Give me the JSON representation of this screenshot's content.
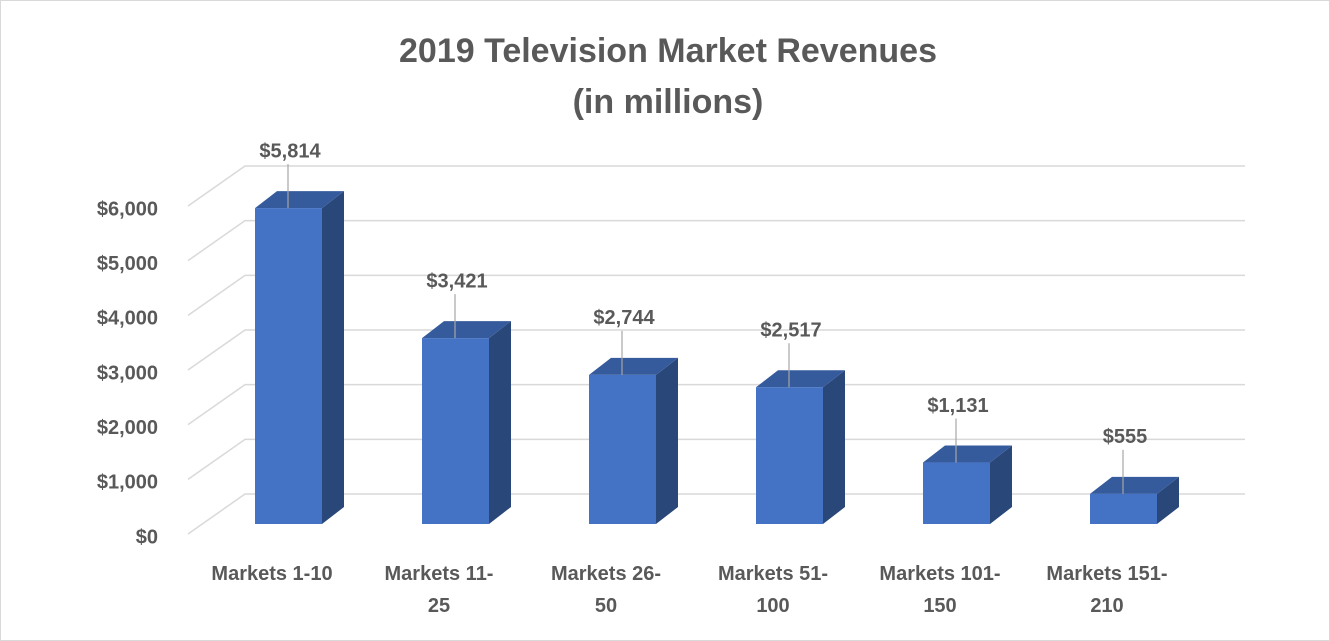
{
  "chart_data": {
    "type": "bar3d",
    "title": "2019 Television Market Revenues",
    "subtitle": "(in millions)",
    "categories": [
      "Markets 1-10",
      "Markets 11-25",
      "Markets 26-50",
      "Markets 51-100",
      "Markets 101-150",
      "Markets 151-210"
    ],
    "values": [
      5814,
      3421,
      2744,
      2517,
      1131,
      555
    ],
    "value_labels": [
      "$5,814",
      "$3,421",
      "$2,744",
      "$2,517",
      "$1,131",
      "$555"
    ],
    "color": "#4472c4",
    "ylim": [
      0,
      6000
    ],
    "yticks": [
      {
        "value": 0,
        "label": "$0"
      },
      {
        "value": 1000,
        "label": "$1,000"
      },
      {
        "value": 2000,
        "label": "$2,000"
      },
      {
        "value": 3000,
        "label": "$3,000"
      },
      {
        "value": 4000,
        "label": "$4,000"
      },
      {
        "value": 5000,
        "label": "$5,000"
      },
      {
        "value": 6000,
        "label": "$6,000"
      }
    ],
    "grid": true
  }
}
